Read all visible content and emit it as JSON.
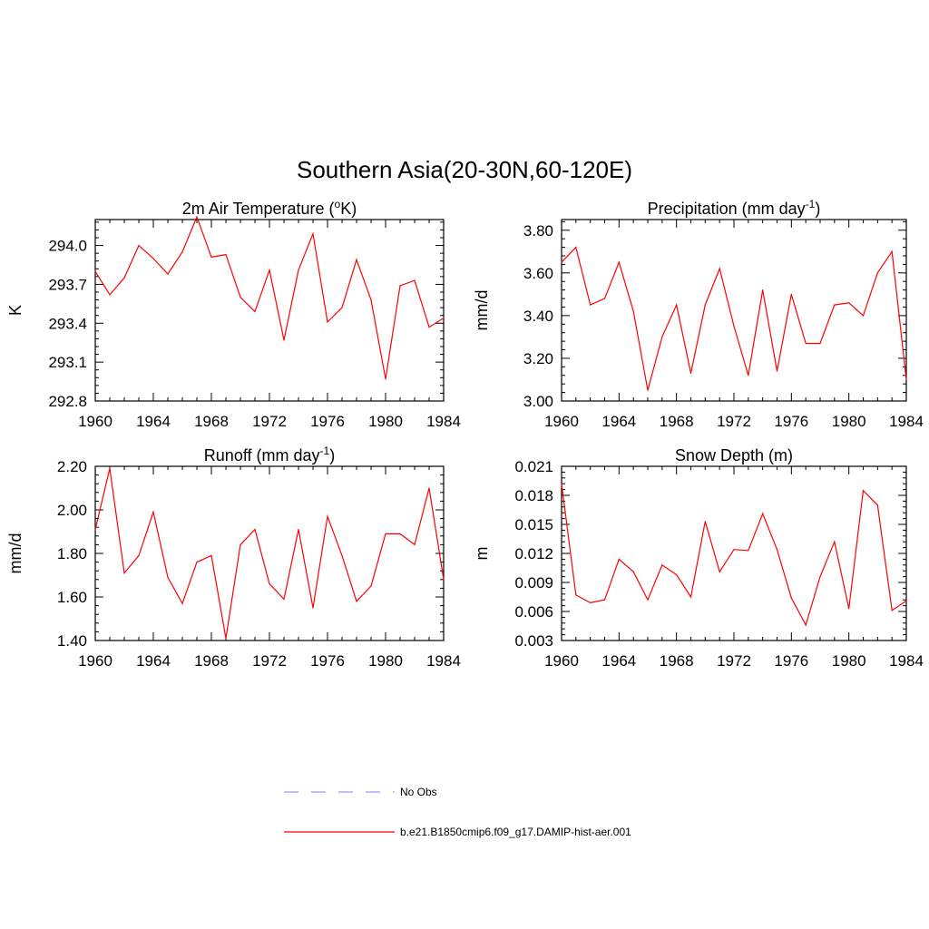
{
  "figure_title": "Southern Asia(20-30N,60-120E)",
  "legend": {
    "items": [
      {
        "label": "No Obs",
        "color": "#9999ff",
        "style": "dashed"
      },
      {
        "label": "b.e21.B1850cmip6.f09_g17.DAMIP-hist-aer.001",
        "color": "#ff0000",
        "style": "solid"
      }
    ]
  },
  "chart_data": [
    {
      "type": "line",
      "title": "2m Air Temperature (",
      "title_sup": "o",
      "title_end": "K)",
      "ylabel": "K",
      "xlim": [
        1960,
        1984
      ],
      "ylim": [
        292.8,
        294.2
      ],
      "x_ticks": [
        1960,
        1964,
        1968,
        1972,
        1976,
        1980,
        1984
      ],
      "x_tick_labels": [
        "1960",
        "1964",
        "1968",
        "1972",
        "1976",
        "1980",
        "1984"
      ],
      "y_ticks": [
        292.8,
        293.1,
        293.4,
        293.7,
        294.0
      ],
      "y_tick_labels": [
        "292.8",
        "293.1",
        "293.4",
        "293.7",
        "294.0"
      ],
      "x": [
        1960,
        1961,
        1962,
        1963,
        1964,
        1965,
        1966,
        1967,
        1968,
        1969,
        1970,
        1971,
        1972,
        1973,
        1974,
        1975,
        1976,
        1977,
        1978,
        1979,
        1980,
        1981,
        1982,
        1983,
        1984
      ],
      "series": [
        {
          "color": "#ff0000",
          "values": [
            293.8,
            293.62,
            293.75,
            294.0,
            293.9,
            293.78,
            293.95,
            294.22,
            293.91,
            293.93,
            293.6,
            293.49,
            293.81,
            293.27,
            293.81,
            294.09,
            293.41,
            293.52,
            293.89,
            293.58,
            292.97,
            293.69,
            293.73,
            293.37,
            293.44
          ]
        }
      ]
    },
    {
      "type": "line",
      "title": "Precipitation (mm day",
      "title_sup": "-1",
      "title_end": ")",
      "ylabel": "mm/d",
      "xlim": [
        1960,
        1984
      ],
      "ylim": [
        3.0,
        3.85
      ],
      "x_ticks": [
        1960,
        1964,
        1968,
        1972,
        1976,
        1980,
        1984
      ],
      "x_tick_labels": [
        "1960",
        "1964",
        "1968",
        "1972",
        "1976",
        "1980",
        "1984"
      ],
      "y_ticks": [
        3.0,
        3.2,
        3.4,
        3.6,
        3.8
      ],
      "y_tick_labels": [
        "3.00",
        "3.20",
        "3.40",
        "3.60",
        "3.80"
      ],
      "x": [
        1960,
        1961,
        1962,
        1963,
        1964,
        1965,
        1966,
        1967,
        1968,
        1969,
        1970,
        1971,
        1972,
        1973,
        1974,
        1975,
        1976,
        1977,
        1978,
        1979,
        1980,
        1981,
        1982,
        1983,
        1984
      ],
      "series": [
        {
          "color": "#ff0000",
          "values": [
            3.65,
            3.72,
            3.45,
            3.48,
            3.65,
            3.42,
            3.05,
            3.3,
            3.45,
            3.13,
            3.45,
            3.62,
            3.35,
            3.12,
            3.52,
            3.14,
            3.5,
            3.27,
            3.27,
            3.45,
            3.46,
            3.4,
            3.6,
            3.7,
            3.1
          ]
        }
      ]
    },
    {
      "type": "line",
      "title": "Runoff (mm day",
      "title_sup": "-1",
      "title_end": ")",
      "ylabel": "mm/d",
      "xlim": [
        1960,
        1984
      ],
      "ylim": [
        1.4,
        2.2
      ],
      "x_ticks": [
        1960,
        1964,
        1968,
        1972,
        1976,
        1980,
        1984
      ],
      "x_tick_labels": [
        "1960",
        "1964",
        "1968",
        "1972",
        "1976",
        "1980",
        "1984"
      ],
      "y_ticks": [
        1.4,
        1.6,
        1.8,
        2.0,
        2.2
      ],
      "y_tick_labels": [
        "1.40",
        "1.60",
        "1.80",
        "2.00",
        "2.20"
      ],
      "x": [
        1960,
        1961,
        1962,
        1963,
        1964,
        1965,
        1966,
        1967,
        1968,
        1969,
        1970,
        1971,
        1972,
        1973,
        1974,
        1975,
        1976,
        1977,
        1978,
        1979,
        1980,
        1981,
        1982,
        1983,
        1984
      ],
      "series": [
        {
          "color": "#ff0000",
          "values": [
            1.91,
            2.19,
            1.71,
            1.79,
            1.99,
            1.69,
            1.57,
            1.76,
            1.79,
            1.41,
            1.84,
            1.91,
            1.66,
            1.59,
            1.91,
            1.55,
            1.97,
            1.79,
            1.58,
            1.65,
            1.89,
            1.89,
            1.84,
            2.1,
            1.68
          ]
        }
      ]
    },
    {
      "type": "line",
      "title": "Snow Depth (m)",
      "title_sup": "",
      "title_end": "",
      "ylabel": "m",
      "xlim": [
        1960,
        1984
      ],
      "ylim": [
        0.003,
        0.021
      ],
      "x_ticks": [
        1960,
        1964,
        1968,
        1972,
        1976,
        1980,
        1984
      ],
      "x_tick_labels": [
        "1960",
        "1964",
        "1968",
        "1972",
        "1976",
        "1980",
        "1984"
      ],
      "y_ticks": [
        0.003,
        0.006,
        0.009,
        0.012,
        0.015,
        0.018,
        0.021
      ],
      "y_tick_labels": [
        "0.003",
        "0.006",
        "0.009",
        "0.012",
        "0.015",
        "0.018",
        "0.021"
      ],
      "x": [
        1960,
        1961,
        1962,
        1963,
        1964,
        1965,
        1966,
        1967,
        1968,
        1969,
        1970,
        1971,
        1972,
        1973,
        1974,
        1975,
        1976,
        1977,
        1978,
        1979,
        1980,
        1981,
        1982,
        1983,
        1984
      ],
      "series": [
        {
          "color": "#ff0000",
          "values": [
            0.0192,
            0.0077,
            0.0069,
            0.0072,
            0.0114,
            0.0101,
            0.0072,
            0.0108,
            0.0098,
            0.0075,
            0.0153,
            0.0101,
            0.0124,
            0.0123,
            0.0161,
            0.0124,
            0.0074,
            0.0046,
            0.0096,
            0.0132,
            0.0063,
            0.0185,
            0.017,
            0.0061,
            0.0071
          ]
        }
      ]
    }
  ]
}
